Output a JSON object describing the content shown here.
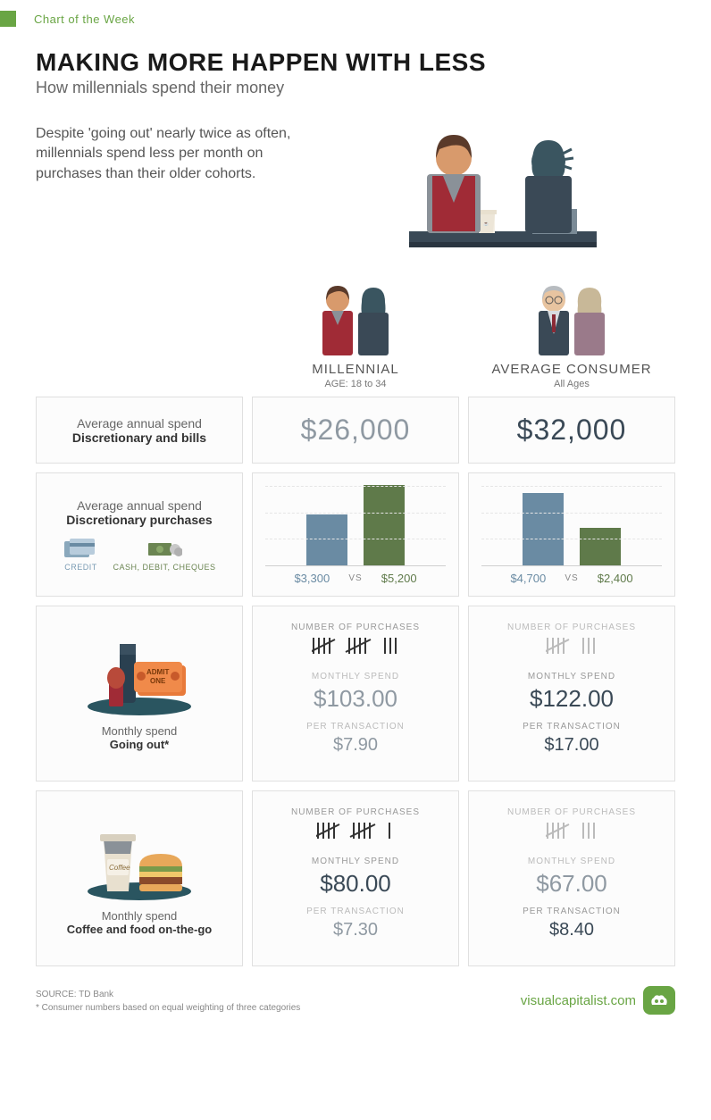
{
  "header": {
    "label": "Chart of the Week"
  },
  "title": "MAKING MORE HAPPEN WITH LESS",
  "subtitle": "How millennials spend their money",
  "intro": "Despite 'going out' nearly twice as often, millennials spend less per month on purchases than their older cohorts.",
  "personas": {
    "millennial": {
      "label": "MILLENNIAL",
      "sub": "AGE: 18 to 34"
    },
    "consumer": {
      "label": "AVERAGE CONSUMER",
      "sub": "All Ages"
    }
  },
  "colors": {
    "accent_green": "#69a544",
    "bar_blue": "#6a8ba3",
    "bar_green": "#5f7a4a",
    "text_muted": "#8f99a2",
    "text_dark": "#3a4956",
    "border": "#e0e0e0",
    "bg": "#fcfcfc",
    "legend_blue": "#7a9bb3",
    "legend_green": "#6b8552"
  },
  "rows": {
    "annual_total": {
      "label_line1": "Average annual spend",
      "label_line2": "Discretionary and bills",
      "millennial": "$26,000",
      "consumer": "$32,000"
    },
    "discretionary": {
      "label_line1": "Average annual spend",
      "label_line2": "Discretionary purchases",
      "legend": {
        "credit": "CREDIT",
        "cash": "CASH, DEBIT, CHEQUES"
      },
      "millennial": {
        "credit_value": 3300,
        "credit_label": "$3,300",
        "cash_value": 5200,
        "cash_label": "$5,200",
        "vs": "VS"
      },
      "consumer": {
        "credit_value": 4700,
        "credit_label": "$4,700",
        "cash_value": 2400,
        "cash_label": "$2,400",
        "vs": "VS"
      },
      "chart_max": 5200
    },
    "going_out": {
      "label_line1": "Monthly spend",
      "label_line2": "Going out*",
      "millennial": {
        "purchases_label": "NUMBER OF PURCHASES",
        "purchases_tally": "|||| |||| |||",
        "purchases_count": 13,
        "monthly_label": "MONTHLY SPEND",
        "monthly_value": "$103.00",
        "per_label": "PER TRANSACTION",
        "per_value": "$7.90",
        "highlight_monthly": false
      },
      "consumer": {
        "purchases_label": "NUMBER OF PURCHASES",
        "purchases_tally": "|||| ||||",
        "purchases_count": 8,
        "monthly_label": "MONTHLY SPEND",
        "monthly_value": "$122.00",
        "per_label": "PER TRANSACTION",
        "per_value": "$17.00",
        "highlight_monthly": true
      }
    },
    "coffee_food": {
      "label_line1": "Monthly spend",
      "label_line2": "Coffee and food on-the-go",
      "millennial": {
        "purchases_label": "NUMBER OF PURCHASES",
        "purchases_tally": "|||| |||| |",
        "purchases_count": 11,
        "monthly_label": "MONTHLY SPEND",
        "monthly_value": "$80.00",
        "per_label": "PER TRANSACTION",
        "per_value": "$7.30",
        "highlight_monthly": true
      },
      "consumer": {
        "purchases_label": "NUMBER OF PURCHASES",
        "purchases_tally": "|||| |||",
        "purchases_count": 8,
        "monthly_label": "MONTHLY SPEND",
        "monthly_value": "$67.00",
        "per_label": "PER TRANSACTION",
        "per_value": "$8.40",
        "highlight_monthly": false
      }
    }
  },
  "footer": {
    "source": "SOURCE: TD Bank",
    "note": "* Consumer numbers based on equal weighting of three categories",
    "brand": "visualcapitalist.com"
  }
}
